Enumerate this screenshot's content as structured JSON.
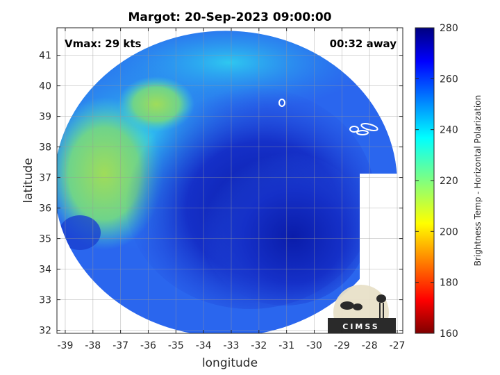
{
  "chart_data": {
    "type": "heatmap",
    "title": "Margot: 20-Sep-2023 09:00:00",
    "xlabel": "longitude",
    "ylabel": "latitude",
    "xlim": [
      -39.3,
      -26.8
    ],
    "ylim": [
      31.9,
      41.9
    ],
    "xticks": [
      -39,
      -38,
      -37,
      -36,
      -35,
      -34,
      -33,
      -32,
      -31,
      -30,
      -29,
      -28,
      -27
    ],
    "yticks": [
      32,
      33,
      34,
      35,
      36,
      37,
      38,
      39,
      40,
      41
    ],
    "grid": true,
    "annotations": {
      "left": "Vmax: 29 kts",
      "right": "00:32 away"
    },
    "colorbar": {
      "label": "Brightness Temp - Horizontal Polarization",
      "range": [
        160,
        280
      ],
      "ticks": [
        160,
        180,
        200,
        220,
        240,
        260,
        280
      ],
      "colormap": "jet_reversed",
      "position": "right"
    },
    "swath": {
      "center_lon": -33.2,
      "center_lat": 36.8,
      "radius_lon": 6.2,
      "radius_lat": 5.0
    }
  },
  "logo": {
    "text": "CIMSS"
  },
  "colors": {
    "low_cold": "#0a1a9c",
    "mid": "#2f6ff0",
    "warm_cyan": "#33d6e6",
    "green": "#8cd86a",
    "yellow_green": "#c8e04a"
  }
}
